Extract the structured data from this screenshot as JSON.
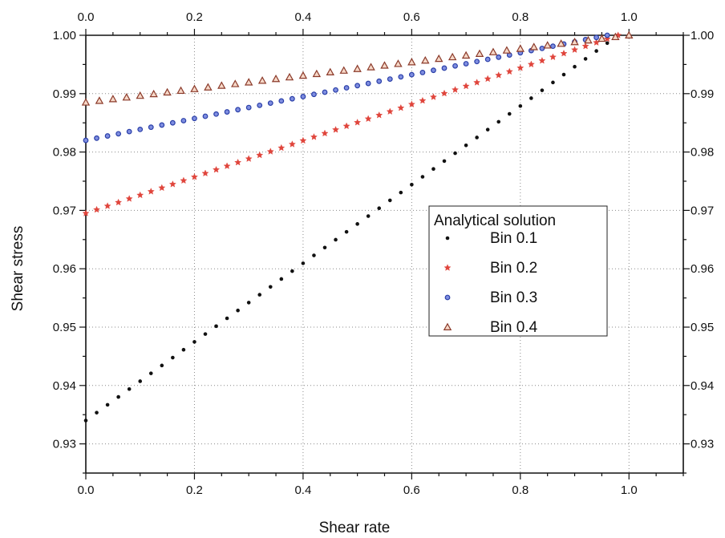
{
  "chart_data": {
    "type": "scatter",
    "xlabel": "Shear rate",
    "ylabel": "Shear stress",
    "xlim": [
      0.0,
      1.1
    ],
    "ylim": [
      0.925,
      1.0
    ],
    "x_ticks": [
      "0.0",
      "0.2",
      "0.4",
      "0.6",
      "0.8",
      "1.0"
    ],
    "x_tick_values": [
      0.0,
      0.2,
      0.4,
      0.6,
      0.8,
      1.0
    ],
    "y_ticks": [
      "0.93",
      "0.94",
      "0.95",
      "0.96",
      "0.97",
      "0.98",
      "0.99",
      "1.00"
    ],
    "y_tick_values": [
      0.93,
      0.94,
      0.95,
      0.96,
      0.97,
      0.98,
      0.99,
      1.0
    ],
    "top_axis": true,
    "right_axis": true,
    "grid": "dotted",
    "legend_title": "Analytical solution",
    "legend_position": "center-right",
    "series": [
      {
        "name": "Bin 0.1",
        "marker": "dot",
        "color": "#111111",
        "x_start": 0.0,
        "x_end": 0.98,
        "x_step": 0.02,
        "y_start": 0.934,
        "y_end": 1.0
      },
      {
        "name": "Bin 0.2",
        "marker": "star",
        "color": "#e0453c",
        "x_start": 0.0,
        "x_end": 0.98,
        "x_step": 0.02,
        "y_start": 0.9695,
        "y_end": 1.0
      },
      {
        "name": "Bin 0.3",
        "marker": "circle",
        "color": "#2a3fa8",
        "x_start": 0.0,
        "x_end": 0.96,
        "x_step": 0.02,
        "y_start": 0.982,
        "y_end": 1.0
      },
      {
        "name": "Bin 0.4",
        "marker": "triangle",
        "color": "#8b3a2a",
        "x_start": 0.0,
        "x_end": 1.0,
        "x_step": 0.025,
        "y_start": 0.9885,
        "y_end": 1.0
      }
    ]
  }
}
